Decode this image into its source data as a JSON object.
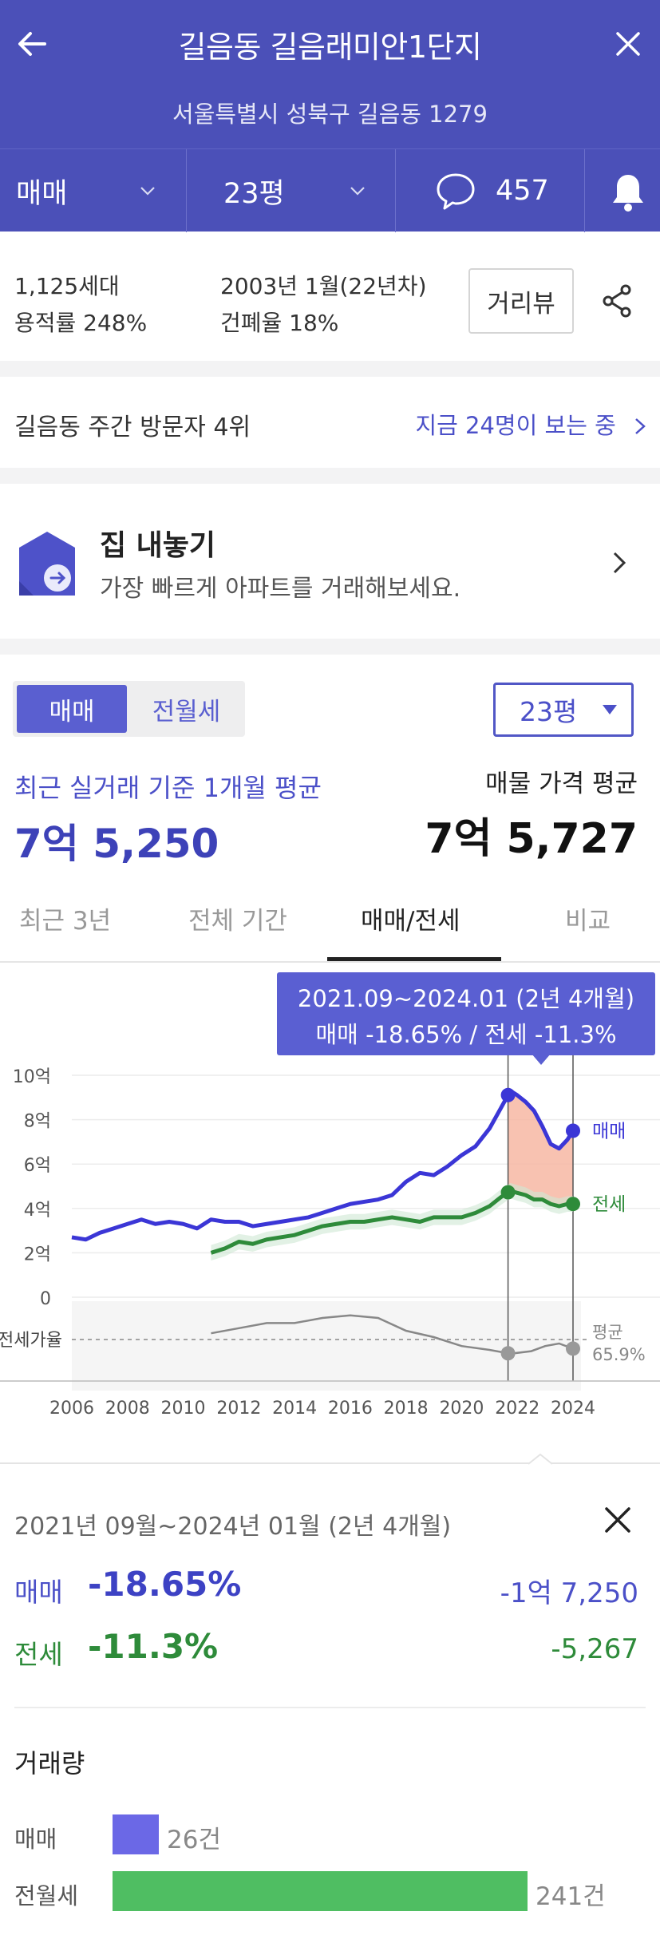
{
  "header": {
    "title": "길음동 길음래미안1단지",
    "address": "서울특별시 성북구 길음동 1279",
    "trade_type": "매매",
    "size": "23평",
    "comment_count": "457"
  },
  "info": {
    "households": "1,125세대",
    "floor_area_ratio": "용적률 248%",
    "built": "2003년 1월(22년차)",
    "coverage_ratio": "건폐율 18%",
    "street_view_label": "거리뷰"
  },
  "rank": {
    "text": "길음동 주간 방문자 4위",
    "viewers_link": "지금 24명이 보는 중"
  },
  "sell_banner": {
    "title": "집 내놓기",
    "subtitle": "가장 빠르게 아파트를 거래해보세요."
  },
  "price": {
    "toggle": [
      "매매",
      "전월세"
    ],
    "size_select": "23평",
    "recent_label": "최근 실거래 기준 1개월 평균",
    "recent_value": "7억 5,250",
    "listing_label": "매물 가격 평균",
    "listing_value": "7억 5,727"
  },
  "tabs": [
    "최근 3년",
    "전체 기간",
    "매매/전세",
    "비교"
  ],
  "tooltip": {
    "period": "2021.09~2024.01 (2년 4개월)",
    "changes": "매매 -18.65%  /  전세 -11.3%"
  },
  "chart_data": {
    "type": "line",
    "x_ticks": [
      "2006",
      "2008",
      "2010",
      "2012",
      "2014",
      "2016",
      "2018",
      "2020",
      "2022",
      "2024"
    ],
    "y_ticks": [
      "10억",
      "8억",
      "6억",
      "4억",
      "2억",
      "0"
    ],
    "ylim": [
      0,
      10
    ],
    "y_unit": "억",
    "ratio_label": "전세가율",
    "ratio_avg_label": "평균",
    "ratio_avg_value": "65.9%",
    "series": [
      {
        "name": "매매",
        "color": "#3b36d6",
        "x": [
          2006.0,
          2006.5,
          2007.0,
          2007.5,
          2008.0,
          2008.5,
          2009.0,
          2009.5,
          2010.0,
          2010.5,
          2011.0,
          2011.5,
          2012.0,
          2012.5,
          2013.0,
          2013.5,
          2014.0,
          2014.5,
          2015.0,
          2015.5,
          2016.0,
          2016.5,
          2017.0,
          2017.5,
          2018.0,
          2018.5,
          2019.0,
          2019.5,
          2020.0,
          2020.5,
          2021.0,
          2021.4,
          2021.75,
          2022.0,
          2022.3,
          2022.6,
          2022.9,
          2023.2,
          2023.5,
          2023.8,
          2024.0
        ],
        "y": [
          2.7,
          2.6,
          2.9,
          3.1,
          3.3,
          3.5,
          3.3,
          3.4,
          3.3,
          3.1,
          3.5,
          3.4,
          3.4,
          3.2,
          3.3,
          3.4,
          3.5,
          3.6,
          3.8,
          4.0,
          4.2,
          4.3,
          4.4,
          4.6,
          5.2,
          5.6,
          5.5,
          5.9,
          6.4,
          6.8,
          7.6,
          8.5,
          9.3,
          9.1,
          8.8,
          8.4,
          7.7,
          6.9,
          6.7,
          7.1,
          7.5
        ]
      },
      {
        "name": "전세",
        "color": "#2e8b3a",
        "x": [
          2011.0,
          2011.5,
          2012.0,
          2012.5,
          2013.0,
          2013.5,
          2014.0,
          2014.5,
          2015.0,
          2015.5,
          2016.0,
          2016.5,
          2017.0,
          2017.5,
          2018.0,
          2018.5,
          2019.0,
          2019.5,
          2020.0,
          2020.5,
          2021.0,
          2021.4,
          2021.75,
          2022.0,
          2022.3,
          2022.6,
          2022.9,
          2023.2,
          2023.5,
          2023.8,
          2024.0
        ],
        "y": [
          2.0,
          2.2,
          2.5,
          2.4,
          2.6,
          2.7,
          2.8,
          3.0,
          3.2,
          3.3,
          3.4,
          3.4,
          3.5,
          3.6,
          3.5,
          3.4,
          3.6,
          3.6,
          3.6,
          3.8,
          4.1,
          4.5,
          4.8,
          4.7,
          4.6,
          4.4,
          4.4,
          4.2,
          4.1,
          4.2,
          4.2
        ]
      }
    ],
    "ratio_series": {
      "x": [
        2011.0,
        2012.0,
        2013.0,
        2014.0,
        2015.0,
        2016.0,
        2017.0,
        2018.0,
        2019.0,
        2020.0,
        2021.0,
        2021.75,
        2022.5,
        2023.0,
        2023.5,
        2024.0
      ],
      "y": [
        68,
        72,
        76,
        76,
        80,
        82,
        80,
        70,
        65,
        58,
        55,
        52,
        54,
        58,
        60,
        56
      ]
    },
    "highlight_range": [
      "2021.09",
      "2024.01"
    ]
  },
  "detail": {
    "period": "2021년 09월~2024년 01월 (2년 4개월)",
    "sale_label": "매매",
    "sale_pct": "-18.65%",
    "sale_amount": "-1억 7,250",
    "jeonse_label": "전세",
    "jeonse_pct": "-11.3%",
    "jeonse_amount": "-5,267"
  },
  "volume": {
    "title": "거래량",
    "rows": [
      {
        "label": "매매",
        "count": "26건",
        "value": 26,
        "color": "#6b68e6"
      },
      {
        "label": "전월세",
        "count": "241건",
        "value": 241,
        "color": "#4fbe62"
      }
    ]
  },
  "colors": {
    "brand": "#4b50b8",
    "accent": "#4b50c8",
    "sale": "#3b36d6",
    "jeonse": "#2e8b3a",
    "highlight": "#f7b7a3"
  }
}
